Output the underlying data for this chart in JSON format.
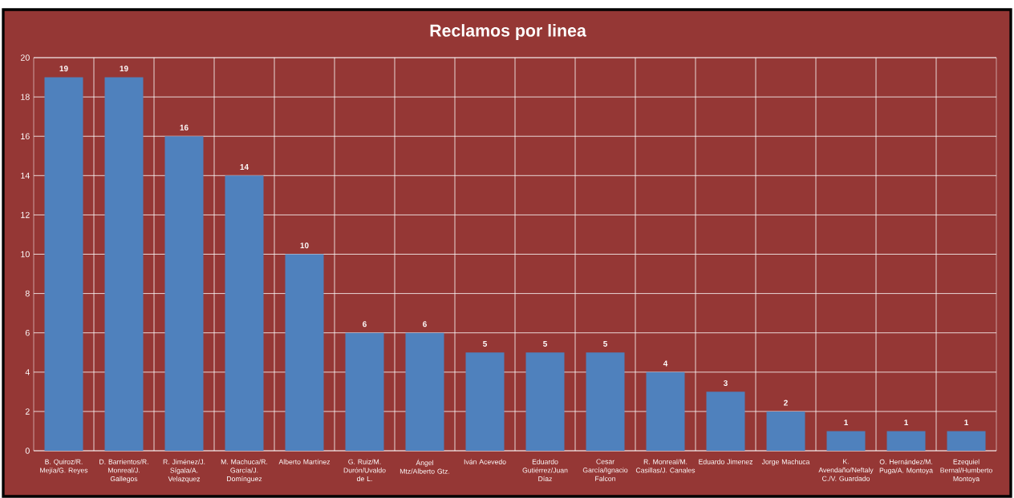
{
  "chart_data": {
    "type": "bar",
    "title": "Reclamos por linea",
    "categories": [
      "B. Quiroz/R. Mejía/G. Reyes",
      "D. Barrientos/R. Monreal/J. Gallegos",
      "R. Jiménez/J. Sígala/A. Velazquez",
      "M. Machuca/R. García/J. Domínguez",
      "Alberto Martínez",
      "G. Ruiz/M. Durón/Uvaldo de L.",
      "Ángel Mtz/Alberto Gtz.",
      "Iván Acevedo",
      "Eduardo Gutiérrez/Juan Díaz",
      "Cesar García/Ignacio Falcon",
      "R. Monreal/M. Casillas/J. Canales",
      "Eduardo Jimenez",
      "Jorge Machuca",
      "K. Avendaño/Neftaly C./V. Guardado",
      "O. Hernández/M. Puga/A. Montoya",
      "Ezequiel Bernal/Humberto Montoya"
    ],
    "values": [
      19,
      19,
      16,
      14,
      10,
      6,
      6,
      5,
      5,
      5,
      4,
      3,
      2,
      1,
      1,
      1
    ],
    "color": "#4f81bd",
    "ylim": [
      0,
      20
    ],
    "yticks": [
      0,
      2,
      4,
      6,
      8,
      10,
      12,
      14,
      16,
      18,
      20
    ],
    "grid": true,
    "data_labels": true
  }
}
